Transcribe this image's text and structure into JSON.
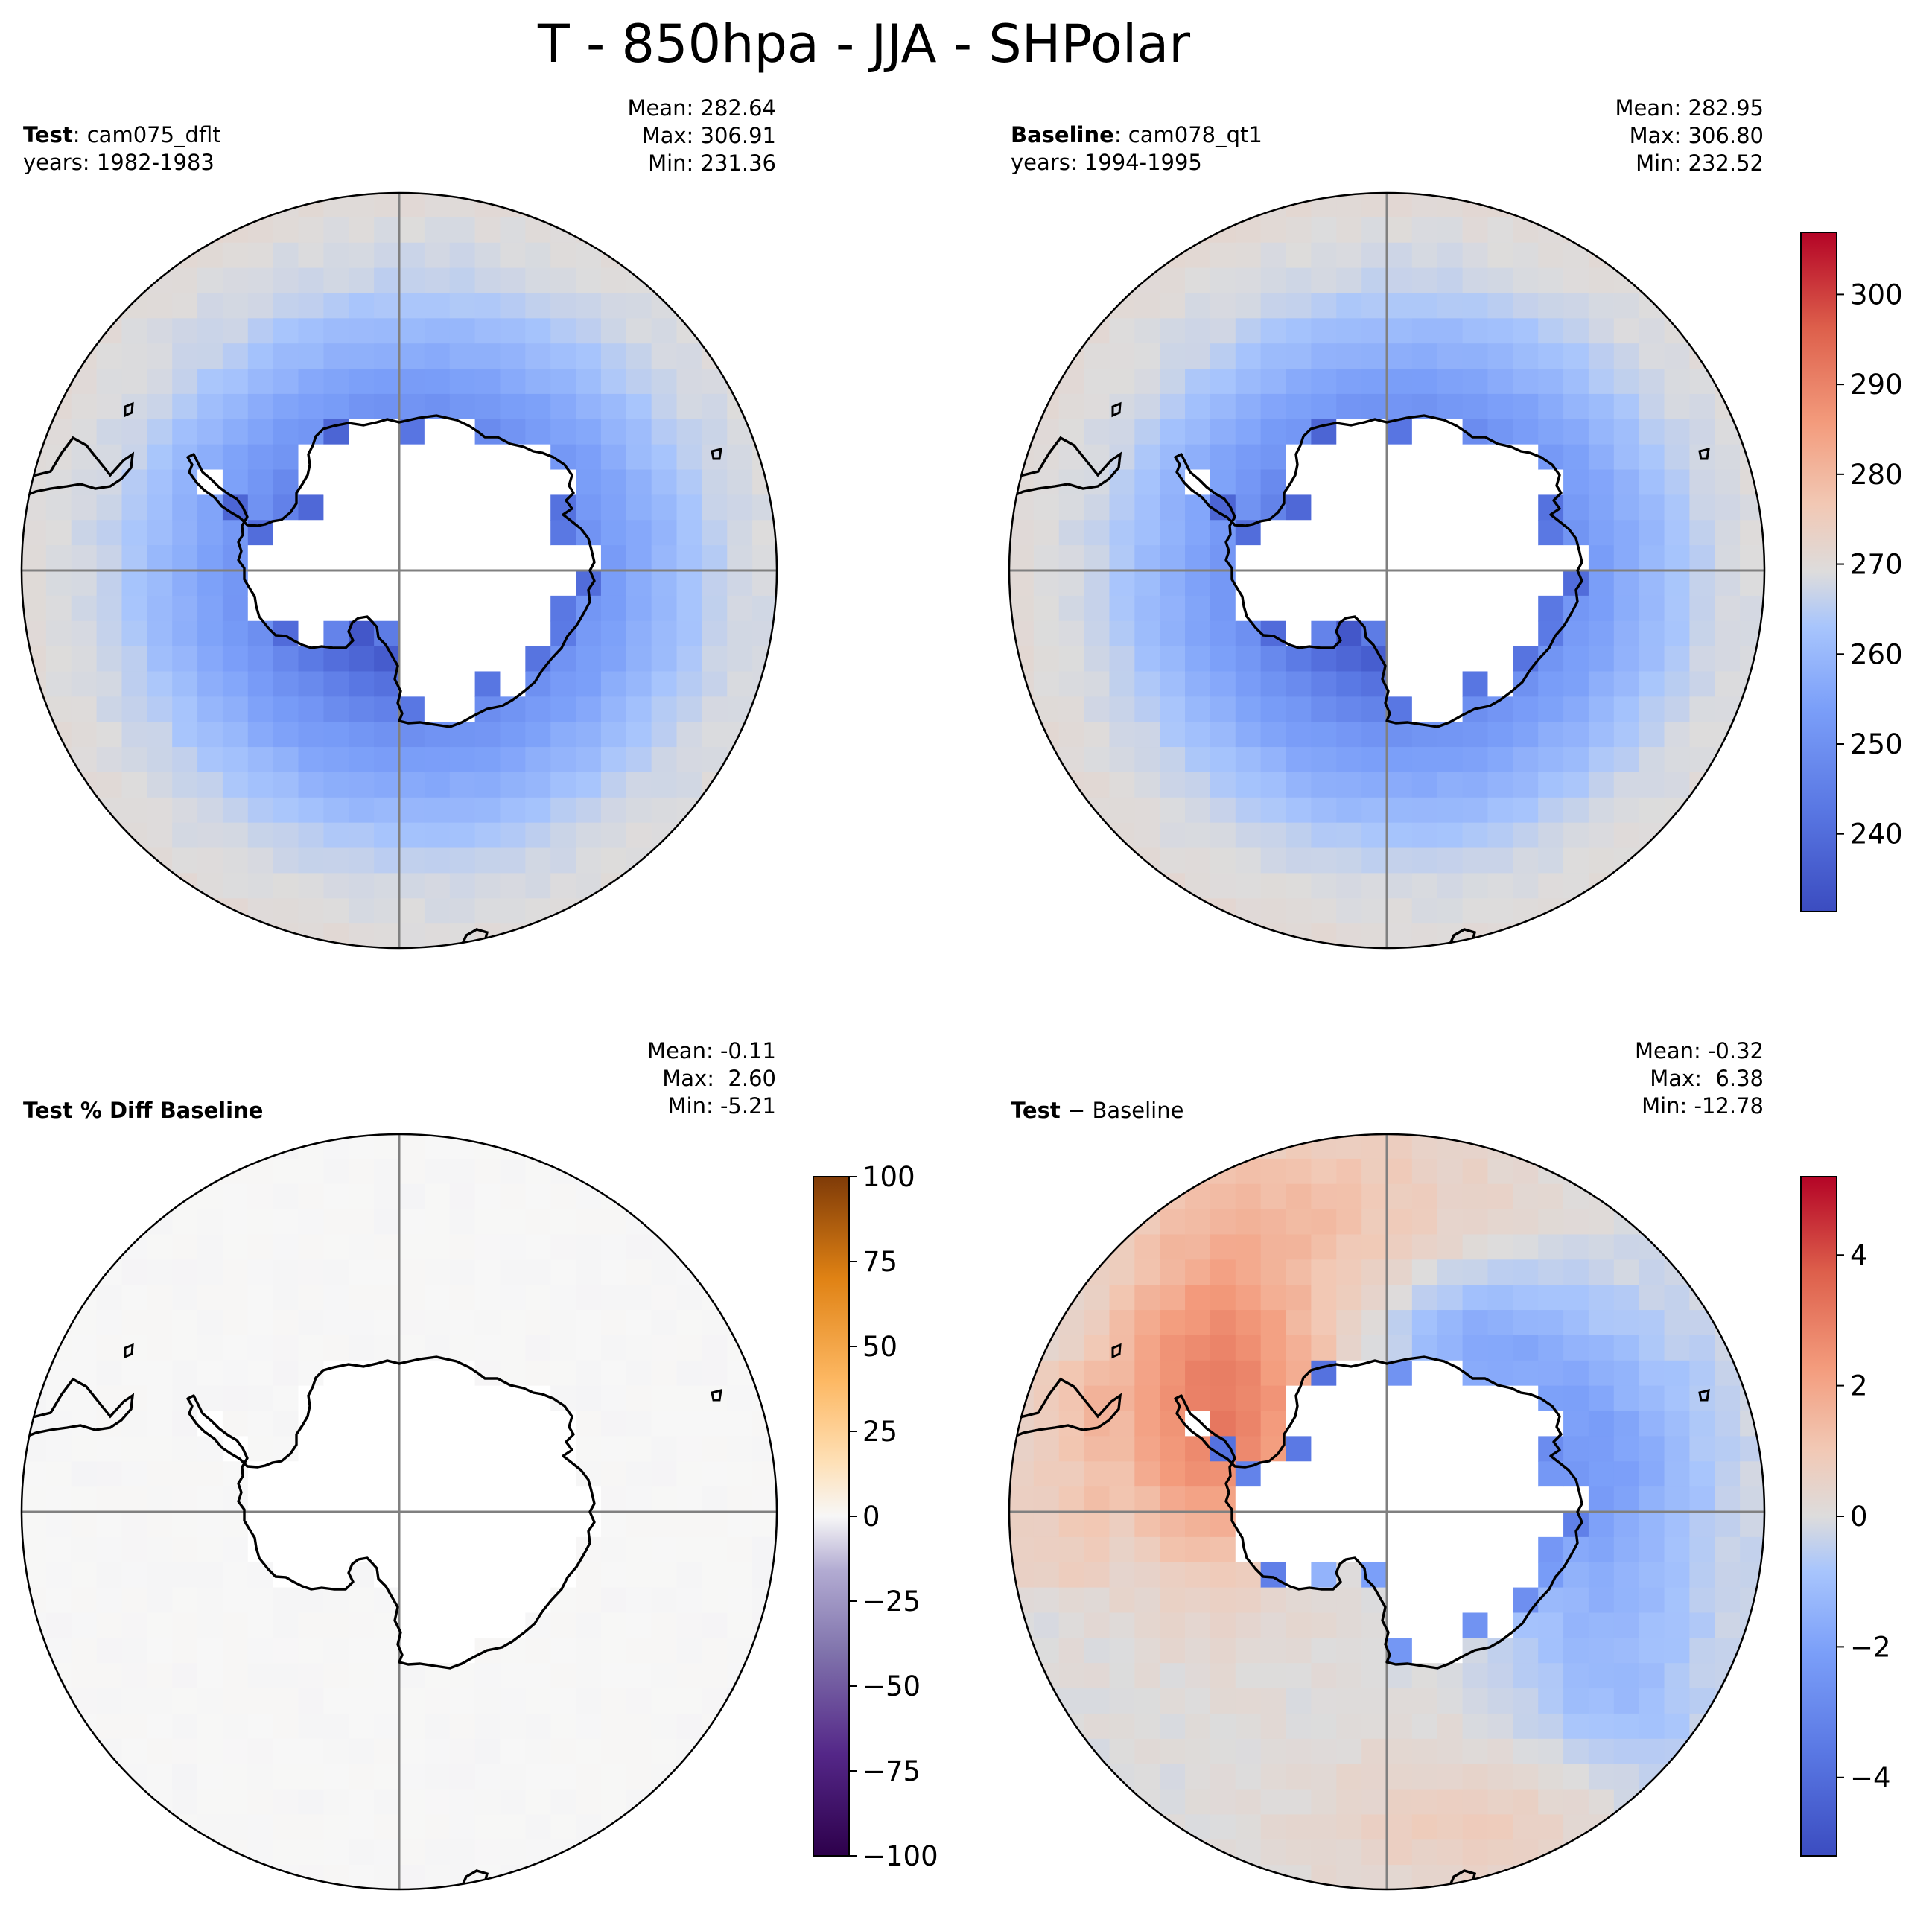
{
  "suptitle": "T - 850hpa - JJA - SHPolar",
  "panels": [
    {
      "id": "test",
      "label_bold": "Test",
      "label_rest": ": cam075_dflt",
      "years": "years: 1982-1983",
      "mean": "Mean: 282.64",
      "max": "Max: 306.91",
      "min": "Min: 231.36",
      "colormap": "coolwarm"
    },
    {
      "id": "baseline",
      "label_bold": "Baseline",
      "label_rest": ": cam078_qt1",
      "years": "years: 1994-1995",
      "mean": "Mean: 282.95",
      "max": "Max: 306.80",
      "min": "Min: 232.52",
      "colormap": "coolwarm"
    },
    {
      "id": "pctdiff",
      "label_bold": "Test % Diff Baseline",
      "label_rest": "",
      "years": "",
      "mean": "Mean: -0.11",
      "max": "Max:  2.60",
      "min": "Min: -5.21",
      "colormap": "PuOr_r"
    },
    {
      "id": "diff",
      "label_bold": "Test",
      "label_rest": " − Baseline",
      "years": "",
      "mean": "Mean: -0.32",
      "max": "Max:  6.38",
      "min": "Min: -12.78",
      "colormap": "coolwarm"
    }
  ],
  "chart_data": [
    {
      "type": "heatmap",
      "title": "Test : cam075_dflt",
      "projection": "south polar stereographic",
      "variable": "T at 850 hPa",
      "season": "JJA",
      "units_range": [
        231.36,
        306.91
      ],
      "description_values": {
        "outer_ring_approx": 270,
        "near_coast_approx": 245,
        "antarctic_interior": "masked"
      }
    },
    {
      "type": "heatmap",
      "title": "Baseline : cam078_qt1",
      "colorbar": {
        "min": 231.36,
        "max": 306.91,
        "ticks": [
          240,
          250,
          260,
          270,
          280,
          290,
          300
        ],
        "tick_labels": [
          "240",
          "250",
          "260",
          "270",
          "280",
          "290",
          "300"
        ]
      },
      "units_range": [
        232.52,
        306.8
      ]
    },
    {
      "type": "heatmap",
      "title": "Test % Diff Baseline",
      "colorbar": {
        "min": -100,
        "max": 100,
        "ticks": [
          100,
          75,
          50,
          25,
          0,
          -25,
          -50,
          -75,
          -100
        ],
        "tick_labels": [
          "100",
          "75",
          "50",
          "25",
          "0",
          "−25",
          "−50",
          "−75",
          "−100"
        ]
      },
      "units_range": [
        -5.21,
        2.6
      ]
    },
    {
      "type": "heatmap",
      "title": "Test − Baseline",
      "colorbar": {
        "min": -5.2,
        "max": 5.2,
        "ticks": [
          4,
          2,
          0,
          -2,
          -4
        ],
        "tick_labels": [
          "4",
          "2",
          "0",
          "−2",
          "−4"
        ]
      },
      "units_range": [
        -12.78,
        6.38
      ]
    }
  ],
  "colors": {
    "cool_low": "#3b4cc0",
    "neutral": "#dddcdc",
    "warm_high": "#b40426",
    "puor_low": "#2d004b",
    "puor_high": "#7f3b08"
  }
}
